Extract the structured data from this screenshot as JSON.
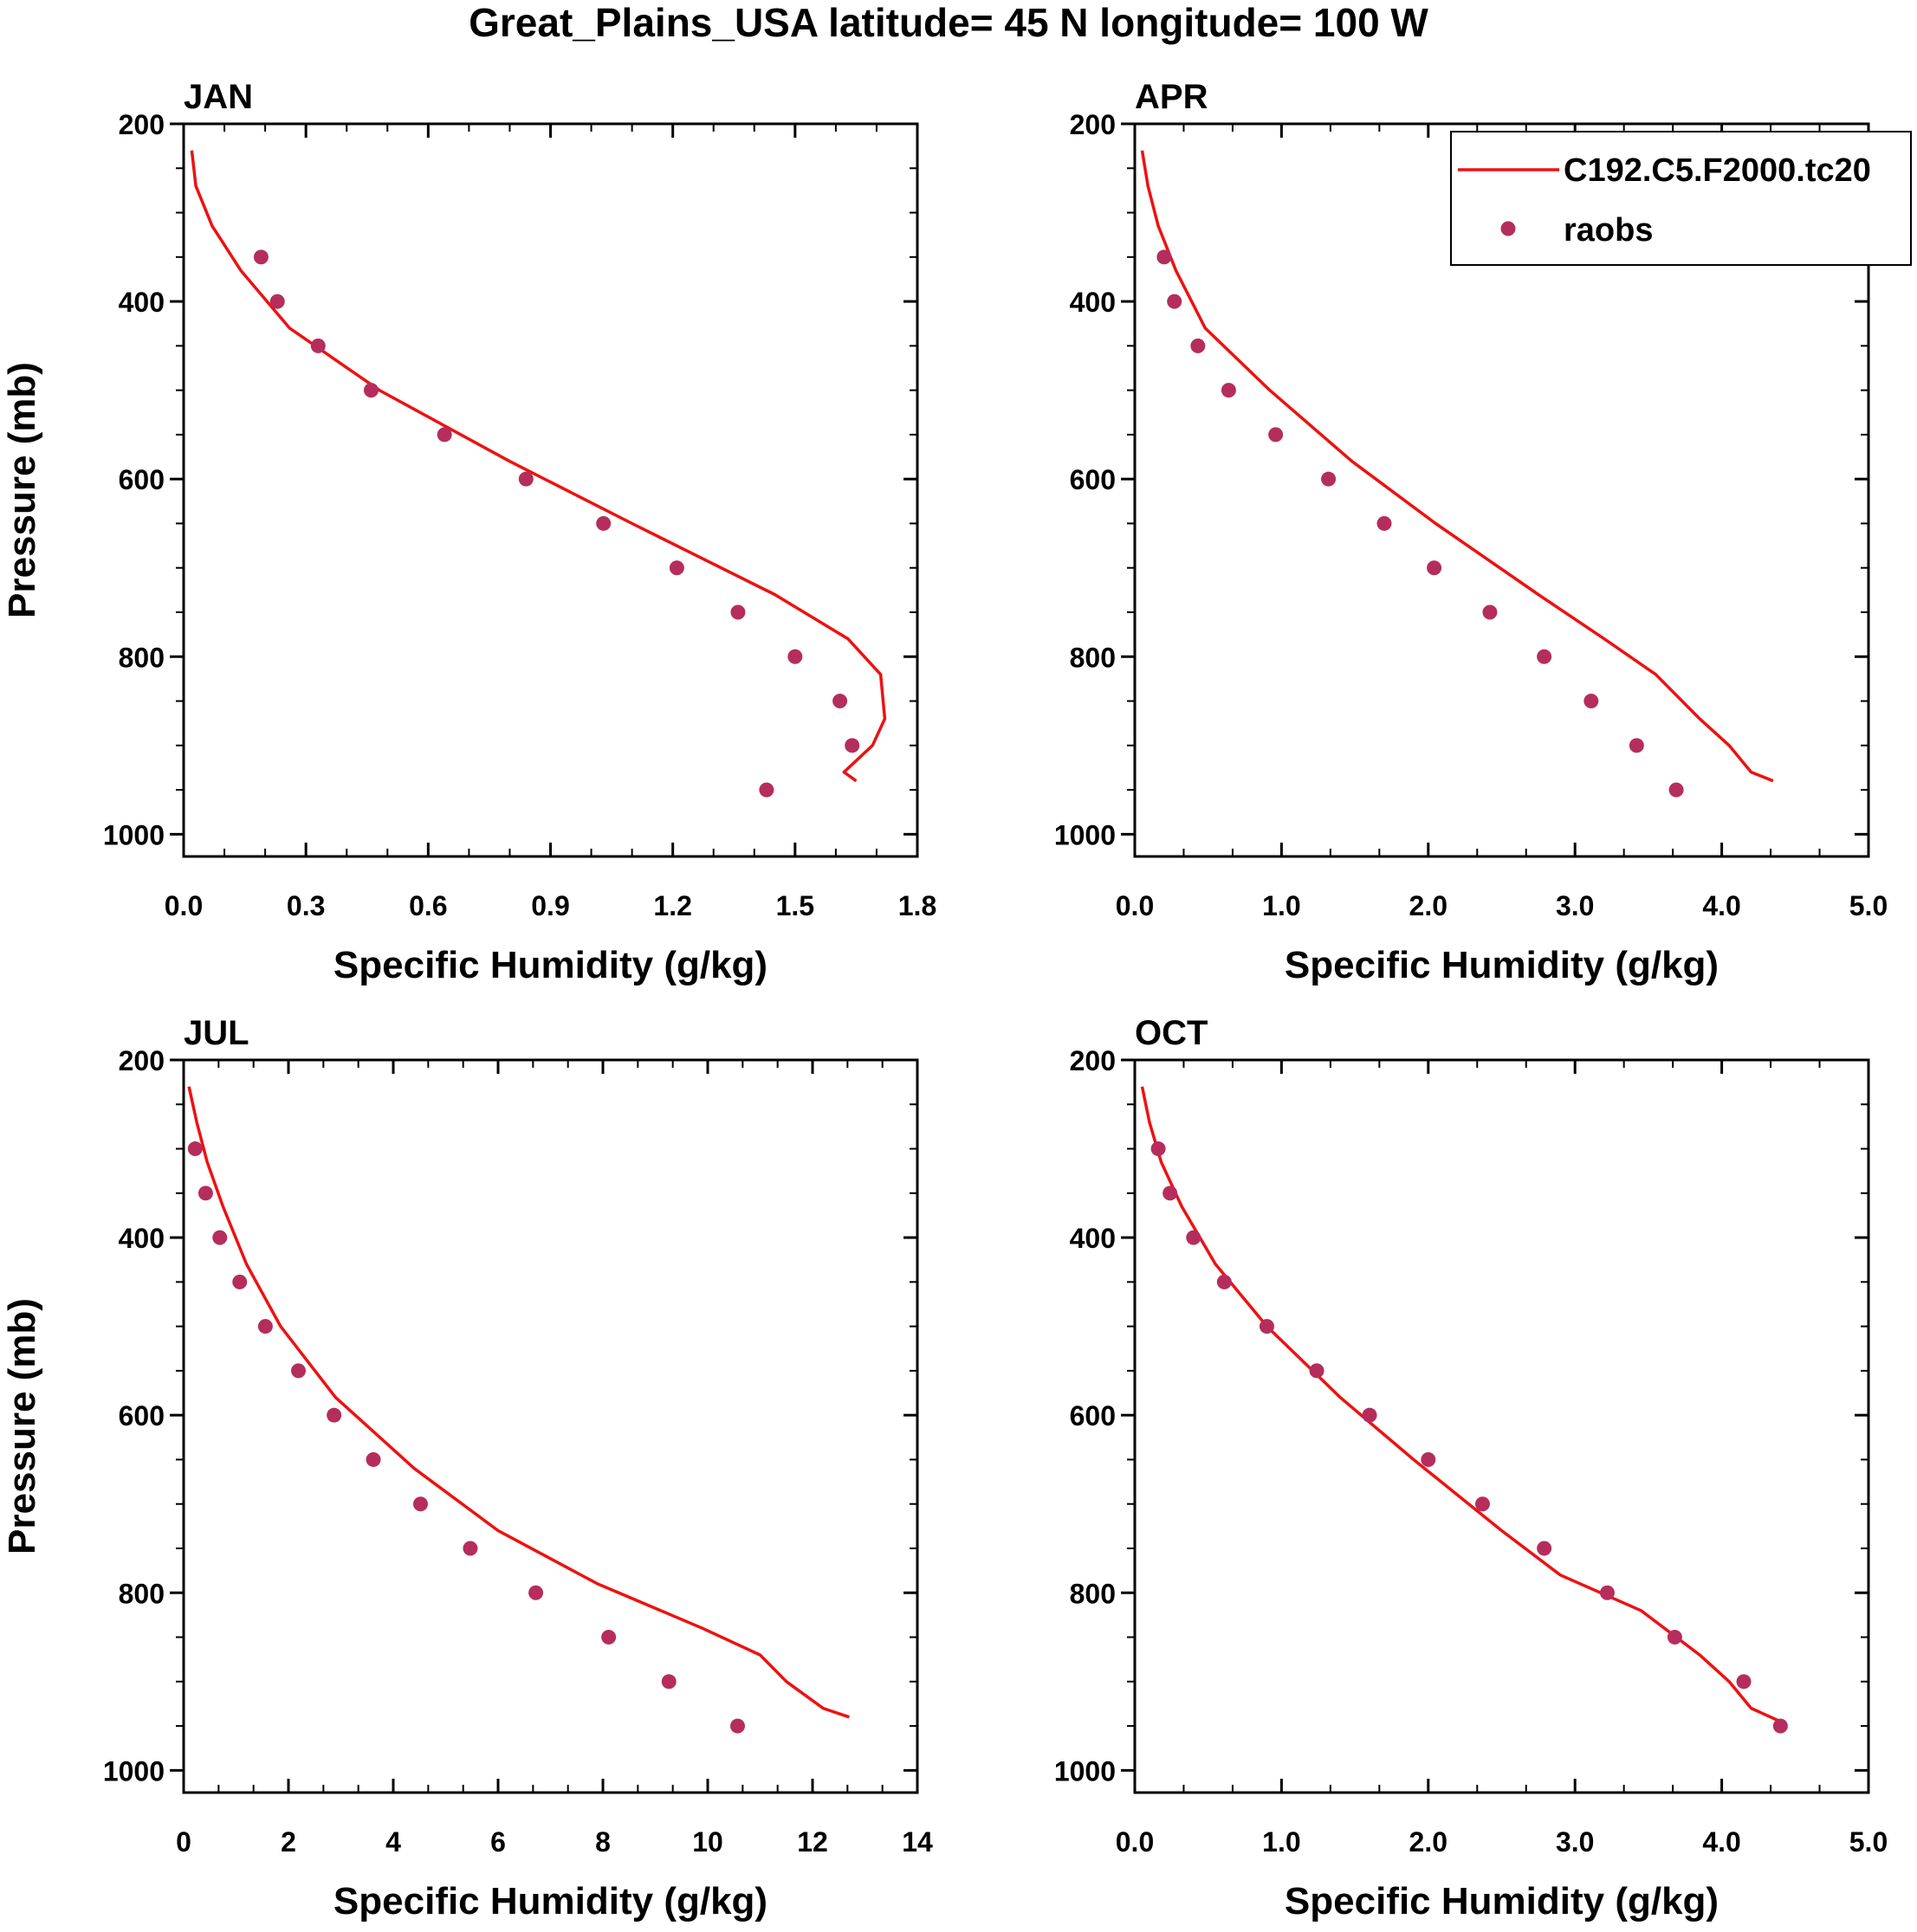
{
  "figure_title": "Great_Plains_USA  latitude= 45 N longitude= 100 W",
  "legend": {
    "model": "C192.C5.F2000.tc20",
    "obs": "raobs"
  },
  "colors": {
    "model": "#ee1111",
    "obs": "#b52d5d"
  },
  "chart_data": [
    {
      "type": "line",
      "panel": "JAN",
      "title": "JAN",
      "xlabel": "Specific Humidity (g/kg)",
      "ylabel": "Pressure (mb)",
      "xlim": [
        0,
        1.8
      ],
      "xticks": [
        0,
        0.3,
        0.6,
        0.9,
        1.2,
        1.5,
        1.8
      ],
      "xtick_labels": [
        "0.0",
        "0.3",
        "0.6",
        "0.9",
        "1.2",
        "1.5",
        "1.8"
      ],
      "ylim": [
        1025,
        200
      ],
      "yticks": [
        200,
        400,
        600,
        800,
        1000
      ],
      "ytick_labels": [
        "200",
        "400",
        "600",
        "800",
        "1000"
      ],
      "legend_shown": false,
      "model": {
        "name": "C192.C5.F2000.tc20",
        "p": [
          230,
          270,
          315,
          365,
          430,
          500,
          580,
          650,
          730,
          780,
          820,
          870,
          900,
          930,
          940
        ],
        "q": [
          0.02,
          0.03,
          0.07,
          0.14,
          0.26,
          0.48,
          0.8,
          1.1,
          1.45,
          1.63,
          1.71,
          1.72,
          1.69,
          1.62,
          1.65
        ]
      },
      "obs": {
        "name": "raobs",
        "p": [
          350,
          400,
          450,
          500,
          550,
          600,
          650,
          700,
          750,
          800,
          850,
          900,
          950
        ],
        "q": [
          0.19,
          0.23,
          0.33,
          0.46,
          0.64,
          0.84,
          1.03,
          1.21,
          1.36,
          1.5,
          1.61,
          1.64,
          1.43
        ]
      }
    },
    {
      "type": "line",
      "panel": "APR",
      "title": "APR",
      "xlabel": "Specific Humidity (g/kg)",
      "ylabel": "Pressure (mb)",
      "xlim": [
        0,
        5
      ],
      "xticks": [
        0,
        1,
        2,
        3,
        4,
        5
      ],
      "xtick_labels": [
        "0.0",
        "1.0",
        "2.0",
        "3.0",
        "4.0",
        "5.0"
      ],
      "ylim": [
        1025,
        200
      ],
      "yticks": [
        200,
        400,
        600,
        800,
        1000
      ],
      "ytick_labels": [
        "200",
        "400",
        "600",
        "800",
        "1000"
      ],
      "legend_shown": true,
      "model": {
        "name": "C192.C5.F2000.tc20",
        "p": [
          230,
          270,
          315,
          365,
          430,
          500,
          580,
          650,
          730,
          780,
          820,
          870,
          900,
          930,
          940
        ],
        "q": [
          0.05,
          0.09,
          0.16,
          0.28,
          0.48,
          0.92,
          1.48,
          2.05,
          2.75,
          3.2,
          3.55,
          3.85,
          4.05,
          4.2,
          4.35
        ]
      },
      "obs": {
        "name": "raobs",
        "p": [
          350,
          400,
          450,
          500,
          550,
          600,
          650,
          700,
          750,
          800,
          850,
          900,
          950
        ],
        "q": [
          0.2,
          0.27,
          0.43,
          0.64,
          0.96,
          1.32,
          1.7,
          2.04,
          2.42,
          2.79,
          3.11,
          3.42,
          3.69
        ]
      }
    },
    {
      "type": "line",
      "panel": "JUL",
      "title": "JUL",
      "xlabel": "Specific Humidity (g/kg)",
      "ylabel": "Pressure (mb)",
      "xlim": [
        0,
        14
      ],
      "xticks": [
        0,
        2,
        4,
        6,
        8,
        10,
        12,
        14
      ],
      "xtick_labels": [
        "0",
        "2",
        "4",
        "6",
        "8",
        "10",
        "12",
        "14"
      ],
      "ylim": [
        1025,
        200
      ],
      "yticks": [
        200,
        400,
        600,
        800,
        1000
      ],
      "ytick_labels": [
        "200",
        "400",
        "600",
        "800",
        "1000"
      ],
      "legend_shown": false,
      "model": {
        "name": "C192.C5.F2000.tc20",
        "p": [
          230,
          270,
          315,
          365,
          430,
          500,
          580,
          660,
          730,
          790,
          840,
          870,
          900,
          930,
          940
        ],
        "q": [
          0.1,
          0.25,
          0.45,
          0.75,
          1.2,
          1.85,
          2.9,
          4.4,
          6.0,
          7.9,
          9.9,
          11.0,
          11.5,
          12.2,
          12.7
        ]
      },
      "obs": {
        "name": "raobs",
        "p": [
          300,
          350,
          400,
          450,
          500,
          550,
          600,
          650,
          700,
          750,
          800,
          850,
          900,
          950
        ],
        "q": [
          0.22,
          0.42,
          0.69,
          1.07,
          1.56,
          2.19,
          2.87,
          3.62,
          4.52,
          5.47,
          6.72,
          8.11,
          9.26,
          10.57
        ]
      }
    },
    {
      "type": "line",
      "panel": "OCT",
      "title": "OCT",
      "xlabel": "Specific Humidity (g/kg)",
      "ylabel": "Pressure (mb)",
      "xlim": [
        0,
        5
      ],
      "xticks": [
        0,
        1,
        2,
        3,
        4,
        5
      ],
      "xtick_labels": [
        "0.0",
        "1.0",
        "2.0",
        "3.0",
        "4.0",
        "5.0"
      ],
      "ylim": [
        1025,
        200
      ],
      "yticks": [
        200,
        400,
        600,
        800,
        1000
      ],
      "ytick_labels": [
        "200",
        "400",
        "600",
        "800",
        "1000"
      ],
      "legend_shown": false,
      "model": {
        "name": "C192.C5.F2000.tc20",
        "p": [
          230,
          270,
          315,
          365,
          430,
          500,
          580,
          650,
          730,
          780,
          820,
          870,
          900,
          930,
          945
        ],
        "q": [
          0.05,
          0.1,
          0.18,
          0.32,
          0.55,
          0.9,
          1.4,
          1.9,
          2.5,
          2.9,
          3.45,
          3.85,
          4.05,
          4.2,
          4.4
        ]
      },
      "obs": {
        "name": "raobs",
        "p": [
          300,
          350,
          400,
          450,
          500,
          550,
          600,
          650,
          700,
          750,
          800,
          850,
          900,
          950
        ],
        "q": [
          0.16,
          0.24,
          0.4,
          0.61,
          0.9,
          1.24,
          1.6,
          2.0,
          2.37,
          2.79,
          3.22,
          3.68,
          4.15,
          4.4
        ]
      }
    }
  ]
}
